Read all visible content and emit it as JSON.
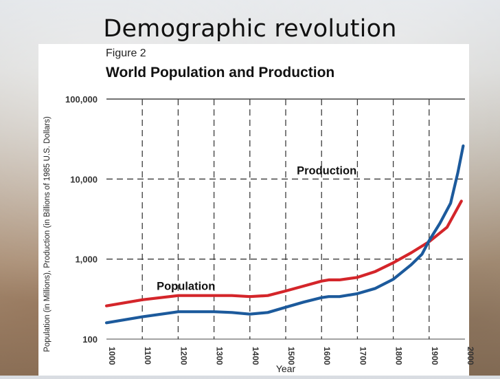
{
  "slide": {
    "title": "Demographic revolution"
  },
  "colors": {
    "population": "#d4252a",
    "production": "#1c5a9c",
    "grid": "#3a3a3a"
  },
  "chart_data": {
    "type": "line",
    "figure_label": "Figure 2",
    "title": "World Population and Production",
    "xlabel": "Year",
    "ylabel": "Population (in Millions), Production (in Billions of 1985 U.S. Dollars)",
    "yscale": "log",
    "ylim": [
      100,
      100000
    ],
    "xlim": [
      1000,
      2000
    ],
    "yticks": [
      "100",
      "1,000",
      "10,000",
      "100,000"
    ],
    "xticks": [
      "1000",
      "1100",
      "1200",
      "1300",
      "1400",
      "1500",
      "1600",
      "1700",
      "1800",
      "1900",
      "2000"
    ],
    "grid": true,
    "series": [
      {
        "name": "Population",
        "x": [
          1000,
          1100,
          1200,
          1300,
          1350,
          1400,
          1450,
          1500,
          1550,
          1600,
          1620,
          1650,
          1700,
          1750,
          1800,
          1850,
          1900,
          1950,
          1990
        ],
        "y": [
          260,
          310,
          350,
          350,
          350,
          340,
          350,
          400,
          460,
          530,
          550,
          550,
          590,
          700,
          900,
          1200,
          1650,
          2500,
          5300
        ]
      },
      {
        "name": "Production",
        "x": [
          1000,
          1100,
          1200,
          1300,
          1350,
          1400,
          1450,
          1500,
          1550,
          1600,
          1620,
          1650,
          1700,
          1750,
          1800,
          1850,
          1880,
          1900,
          1930,
          1960,
          1980,
          1995
        ],
        "y": [
          160,
          190,
          220,
          220,
          215,
          205,
          215,
          250,
          290,
          330,
          340,
          340,
          370,
          430,
          560,
          850,
          1150,
          1700,
          2800,
          5000,
          12000,
          26000
        ]
      }
    ],
    "annotations": [
      {
        "text": "Population",
        "series": "Population"
      },
      {
        "text": "Production",
        "series": "Production"
      }
    ]
  }
}
